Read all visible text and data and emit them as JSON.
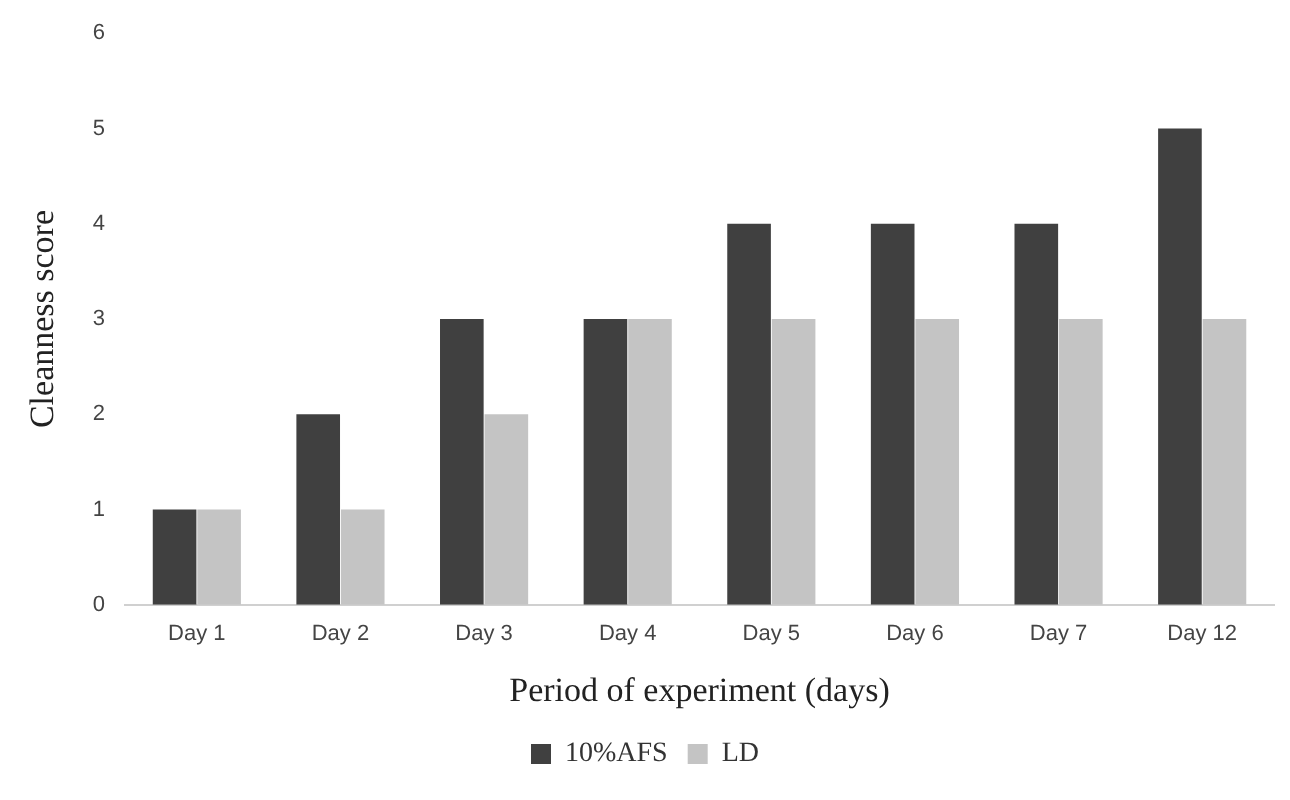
{
  "chart_data": {
    "type": "bar",
    "xlabel": "Period of experiment (days)",
    "ylabel": "Cleanness score",
    "categories": [
      "Day 1",
      "Day 2",
      "Day 3",
      "Day 4",
      "Day 5",
      "Day 6",
      "Day 7",
      "Day 12"
    ],
    "series": [
      {
        "name": "10%AFS",
        "color": "#404040",
        "values": [
          1,
          2,
          3,
          3,
          4,
          4,
          4,
          5
        ]
      },
      {
        "name": "LD",
        "color": "#c4c4c4",
        "values": [
          1,
          1,
          2,
          3,
          3,
          3,
          3,
          3
        ]
      }
    ],
    "ylim": [
      0,
      6
    ],
    "yticks": [
      0,
      1,
      2,
      3,
      4,
      5,
      6
    ],
    "grid": false,
    "legend": "bottom"
  }
}
